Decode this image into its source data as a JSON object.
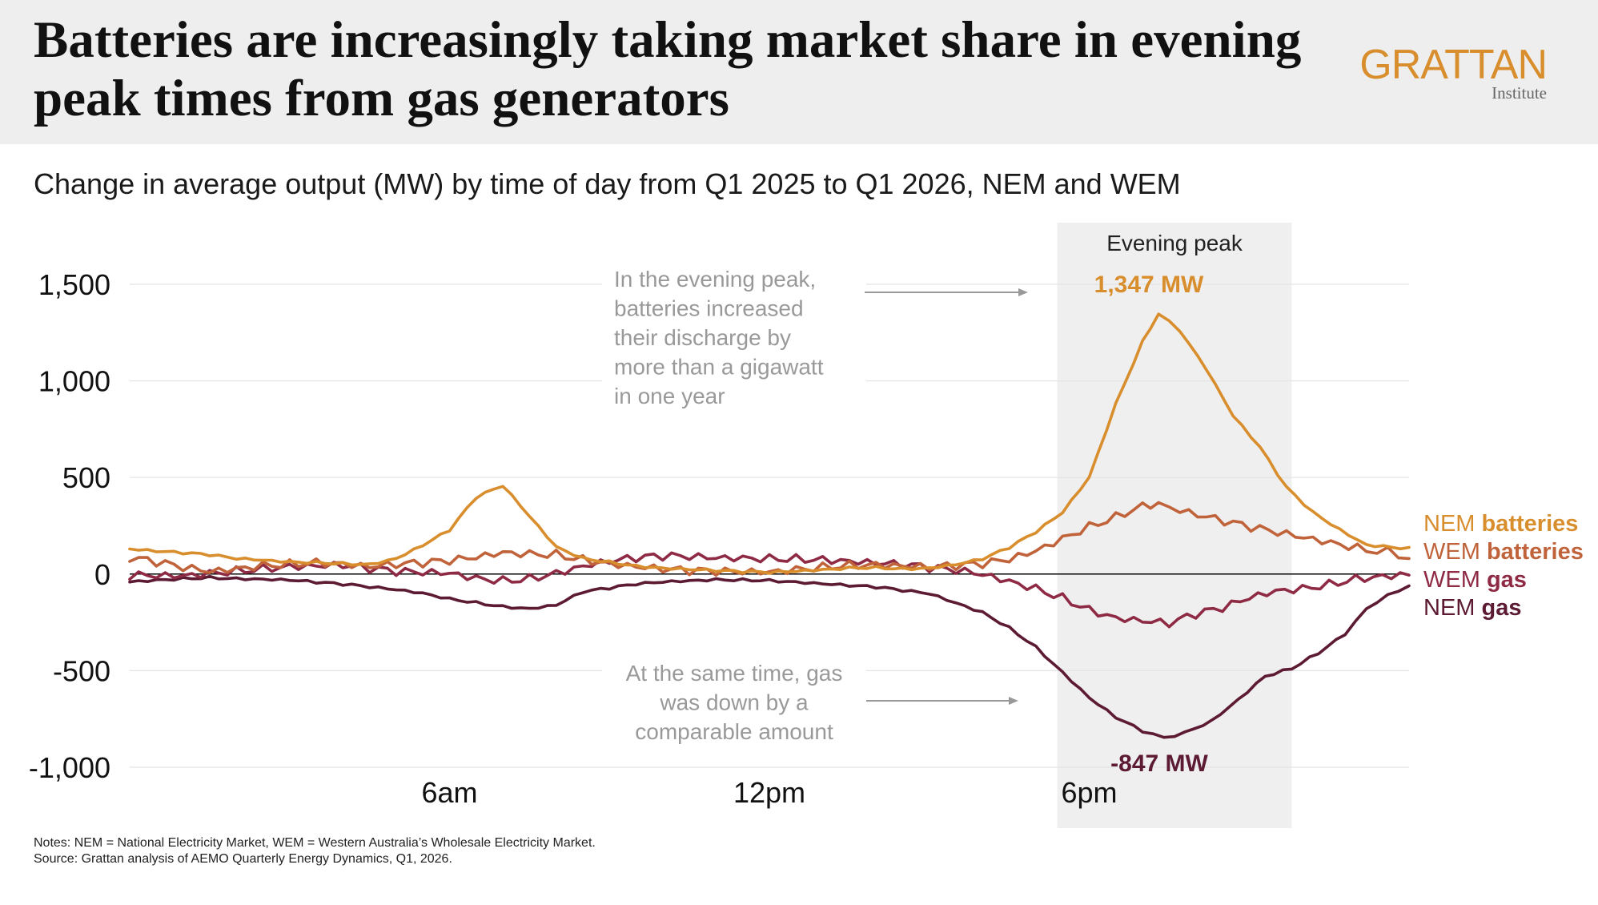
{
  "header": {
    "title": "Batteries are increasingly taking market share in evening peak times from gas generators",
    "logo_text": "GRATTAN",
    "logo_subtext": "Institute"
  },
  "subtitle": "Change in average output (MW) by time of day from Q1 2025 to Q1 2026, NEM and WEM",
  "notes": {
    "line1": "Notes: NEM = National Electricity Market, WEM = Western Australia’s Wholesale Electricity Market.",
    "line2": "Source: Grattan analysis of AEMO Quarterly Energy Dynamics, Q1, 2026."
  },
  "colors": {
    "nem_batteries": "#d98e2e",
    "wem_batteries": "#c0633a",
    "wem_gas": "#8f2a45",
    "nem_gas": "#5c1a33",
    "shade": "#efefef",
    "annotation": "#999999",
    "grid": "#e4e4e4"
  },
  "chart_data": {
    "type": "line",
    "x": [
      0,
      1,
      2,
      3,
      4,
      5,
      6,
      7,
      8,
      9,
      10,
      11,
      12,
      13,
      14,
      15,
      16,
      17,
      18,
      19,
      20,
      21,
      22,
      23,
      24
    ],
    "x_ticks": [
      {
        "at": 6,
        "label": "6am"
      },
      {
        "at": 12,
        "label": "12pm"
      },
      {
        "at": 18,
        "label": "6pm"
      }
    ],
    "xlim": [
      0,
      24
    ],
    "ylim": [
      -1000,
      1500
    ],
    "y_ticks": [
      {
        "value": 1500,
        "label": "1,500"
      },
      {
        "value": 1000,
        "label": "1,000"
      },
      {
        "value": 500,
        "label": "500"
      },
      {
        "value": 0,
        "label": "0"
      },
      {
        "value": -500,
        "label": "-500"
      },
      {
        "value": -1000,
        "label": "-1,000"
      }
    ],
    "grid": true,
    "shaded_region": {
      "x": [
        17.4,
        21.8
      ],
      "label": "Evening peak"
    },
    "series": [
      {
        "name": "NEM batteries",
        "color_key": "nem_batteries",
        "values": [
          [
            0,
            130
          ],
          [
            0.5,
            120
          ],
          [
            1,
            112
          ],
          [
            1.5,
            102
          ],
          [
            2,
            82
          ],
          [
            2.5,
            72
          ],
          [
            3,
            62
          ],
          [
            3.5,
            58
          ],
          [
            4,
            52
          ],
          [
            4.5,
            48
          ],
          [
            5,
            80
          ],
          [
            5.5,
            150
          ],
          [
            6,
            230
          ],
          [
            6.5,
            400
          ],
          [
            7,
            460
          ],
          [
            7.5,
            300
          ],
          [
            8,
            140
          ],
          [
            8.5,
            80
          ],
          [
            9,
            60
          ],
          [
            9.5,
            40
          ],
          [
            10,
            30
          ],
          [
            10.5,
            25
          ],
          [
            11,
            20
          ],
          [
            11.5,
            15
          ],
          [
            12,
            10
          ],
          [
            12.5,
            15
          ],
          [
            13,
            22
          ],
          [
            13.5,
            30
          ],
          [
            14,
            32
          ],
          [
            14.5,
            25
          ],
          [
            15,
            30
          ],
          [
            15.5,
            50
          ],
          [
            16,
            80
          ],
          [
            16.5,
            140
          ],
          [
            17,
            220
          ],
          [
            17.5,
            320
          ],
          [
            18,
            500
          ],
          [
            18.5,
            880
          ],
          [
            19,
            1200
          ],
          [
            19.3,
            1347
          ],
          [
            19.7,
            1260
          ],
          [
            20.2,
            1060
          ],
          [
            20.7,
            820
          ],
          [
            21.2,
            660
          ],
          [
            21.7,
            450
          ],
          [
            22.2,
            320
          ],
          [
            22.7,
            230
          ],
          [
            23.2,
            150
          ],
          [
            24,
            130
          ]
        ]
      },
      {
        "name": "WEM batteries",
        "color_key": "wem_batteries",
        "values": [
          [
            0,
            90
          ],
          [
            0.5,
            70
          ],
          [
            1,
            40
          ],
          [
            1.5,
            15
          ],
          [
            2,
            25
          ],
          [
            2.5,
            40
          ],
          [
            3,
            45
          ],
          [
            3.5,
            55
          ],
          [
            4,
            50
          ],
          [
            4.5,
            40
          ],
          [
            5,
            55
          ],
          [
            5.5,
            65
          ],
          [
            6,
            75
          ],
          [
            6.5,
            90
          ],
          [
            7,
            110
          ],
          [
            7.5,
            100
          ],
          [
            8,
            95
          ],
          [
            8.5,
            70
          ],
          [
            9,
            50
          ],
          [
            9.5,
            40
          ],
          [
            10,
            30
          ],
          [
            10.5,
            25
          ],
          [
            11,
            20
          ],
          [
            11.5,
            15
          ],
          [
            12,
            10
          ],
          [
            12.5,
            20
          ],
          [
            13,
            30
          ],
          [
            13.5,
            40
          ],
          [
            14,
            45
          ],
          [
            14.5,
            42
          ],
          [
            15,
            40
          ],
          [
            15.5,
            50
          ],
          [
            16,
            60
          ],
          [
            16.5,
            80
          ],
          [
            17,
            120
          ],
          [
            17.5,
            180
          ],
          [
            18,
            240
          ],
          [
            18.5,
            290
          ],
          [
            19,
            350
          ],
          [
            19.3,
            360
          ],
          [
            19.7,
            330
          ],
          [
            20.2,
            300
          ],
          [
            20.7,
            270
          ],
          [
            21.2,
            240
          ],
          [
            21.7,
            210
          ],
          [
            22.2,
            180
          ],
          [
            22.7,
            150
          ],
          [
            23.2,
            120
          ],
          [
            23.6,
            110
          ],
          [
            24,
            80
          ]
        ]
      },
      {
        "name": "WEM gas",
        "color_key": "wem_gas",
        "values": [
          [
            0,
            0
          ],
          [
            1,
            -10
          ],
          [
            2,
            10
          ],
          [
            3,
            35
          ],
          [
            4,
            50
          ],
          [
            5,
            20
          ],
          [
            6,
            5
          ],
          [
            6.5,
            -25
          ],
          [
            7,
            -40
          ],
          [
            7.5,
            -30
          ],
          [
            8,
            0
          ],
          [
            8.5,
            40
          ],
          [
            9,
            70
          ],
          [
            9.5,
            90
          ],
          [
            10,
            100
          ],
          [
            10.5,
            95
          ],
          [
            11,
            85
          ],
          [
            12,
            75
          ],
          [
            13,
            70
          ],
          [
            14,
            60
          ],
          [
            14.5,
            55
          ],
          [
            15,
            40
          ],
          [
            15.5,
            25
          ],
          [
            16,
            0
          ],
          [
            16.5,
            -40
          ],
          [
            17,
            -80
          ],
          [
            17.5,
            -130
          ],
          [
            18,
            -190
          ],
          [
            18.5,
            -230
          ],
          [
            19,
            -240
          ],
          [
            19.5,
            -250
          ],
          [
            20,
            -200
          ],
          [
            20.5,
            -170
          ],
          [
            21,
            -120
          ],
          [
            21.5,
            -90
          ],
          [
            22,
            -80
          ],
          [
            22.5,
            -60
          ],
          [
            23,
            -30
          ],
          [
            23.5,
            -15
          ],
          [
            24,
            0
          ]
        ]
      },
      {
        "name": "NEM gas",
        "color_key": "nem_gas",
        "values": [
          [
            0,
            -40
          ],
          [
            1,
            -25
          ],
          [
            1.5,
            -20
          ],
          [
            2,
            -25
          ],
          [
            3,
            -30
          ],
          [
            4,
            -50
          ],
          [
            5,
            -80
          ],
          [
            5.5,
            -100
          ],
          [
            6,
            -130
          ],
          [
            6.5,
            -150
          ],
          [
            7,
            -170
          ],
          [
            7.5,
            -180
          ],
          [
            8,
            -160
          ],
          [
            8.5,
            -90
          ],
          [
            9,
            -70
          ],
          [
            9.5,
            -50
          ],
          [
            10,
            -40
          ],
          [
            11,
            -30
          ],
          [
            12,
            -35
          ],
          [
            13,
            -50
          ],
          [
            14,
            -65
          ],
          [
            15,
            -100
          ],
          [
            15.5,
            -150
          ],
          [
            16,
            -200
          ],
          [
            16.5,
            -280
          ],
          [
            17,
            -380
          ],
          [
            17.5,
            -510
          ],
          [
            18,
            -640
          ],
          [
            18.5,
            -740
          ],
          [
            19,
            -810
          ],
          [
            19.4,
            -847
          ],
          [
            19.8,
            -820
          ],
          [
            20.3,
            -760
          ],
          [
            20.8,
            -650
          ],
          [
            21.3,
            -530
          ],
          [
            21.8,
            -490
          ],
          [
            22.3,
            -410
          ],
          [
            22.8,
            -310
          ],
          [
            23.2,
            -180
          ],
          [
            23.6,
            -110
          ],
          [
            24,
            -60
          ]
        ]
      }
    ],
    "legend": [
      {
        "prefix": "NEM",
        "bold": "batteries",
        "color_key": "nem_batteries"
      },
      {
        "prefix": "WEM",
        "bold": "batteries",
        "color_key": "wem_batteries"
      },
      {
        "prefix": "WEM",
        "bold": "gas",
        "color_key": "wem_gas"
      },
      {
        "prefix": "NEM",
        "bold": "gas",
        "color_key": "nem_gas"
      }
    ],
    "annotations": {
      "batteries_note": [
        "In the evening peak,",
        "batteries increased",
        "their discharge by",
        "more than a gigawatt",
        "in one year"
      ],
      "gas_note": [
        "At the same time, gas",
        "was down by a",
        "comparable amount"
      ],
      "peak_battery_label": "1,347 MW",
      "peak_gas_label": "-847 MW"
    }
  }
}
